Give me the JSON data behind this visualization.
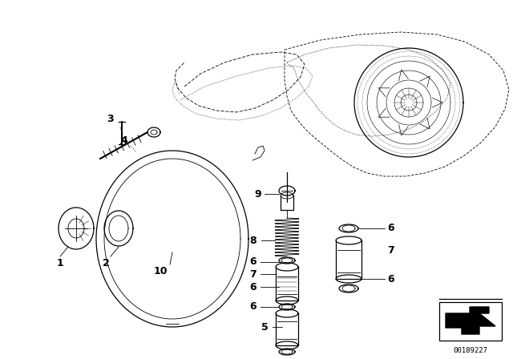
{
  "bg_color": "#ffffff",
  "line_color": "#000000",
  "watermark": "00189227"
}
